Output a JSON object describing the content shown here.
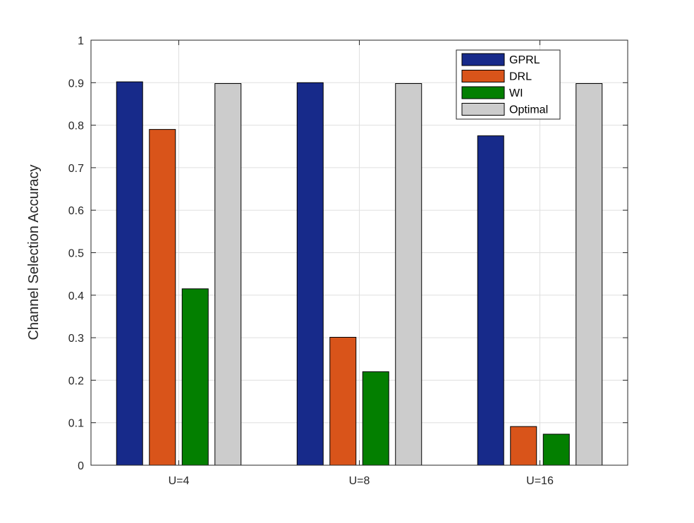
{
  "chart_data": {
    "type": "bar",
    "title": "",
    "xlabel": "",
    "ylabel": "Channel Selection Accuracy",
    "categories": [
      "U=4",
      "U=8",
      "U=16"
    ],
    "ylim": [
      0,
      1
    ],
    "yticks": [
      "0",
      "0.1",
      "0.2",
      "0.3",
      "0.4",
      "0.5",
      "0.6",
      "0.7",
      "0.8",
      "0.9",
      "1"
    ],
    "grid": true,
    "legend_position": "top-right",
    "series": [
      {
        "name": "GPRL",
        "color": "#172a8a",
        "values": [
          0.902,
          0.9,
          0.775
        ]
      },
      {
        "name": "DRL",
        "color": "#d9541a",
        "values": [
          0.79,
          0.301,
          0.091
        ]
      },
      {
        "name": "WI",
        "color": "#037f00",
        "values": [
          0.415,
          0.22,
          0.073
        ]
      },
      {
        "name": "Optimal",
        "color": "#cccccc",
        "values": [
          0.898,
          0.898,
          0.898
        ]
      }
    ]
  }
}
